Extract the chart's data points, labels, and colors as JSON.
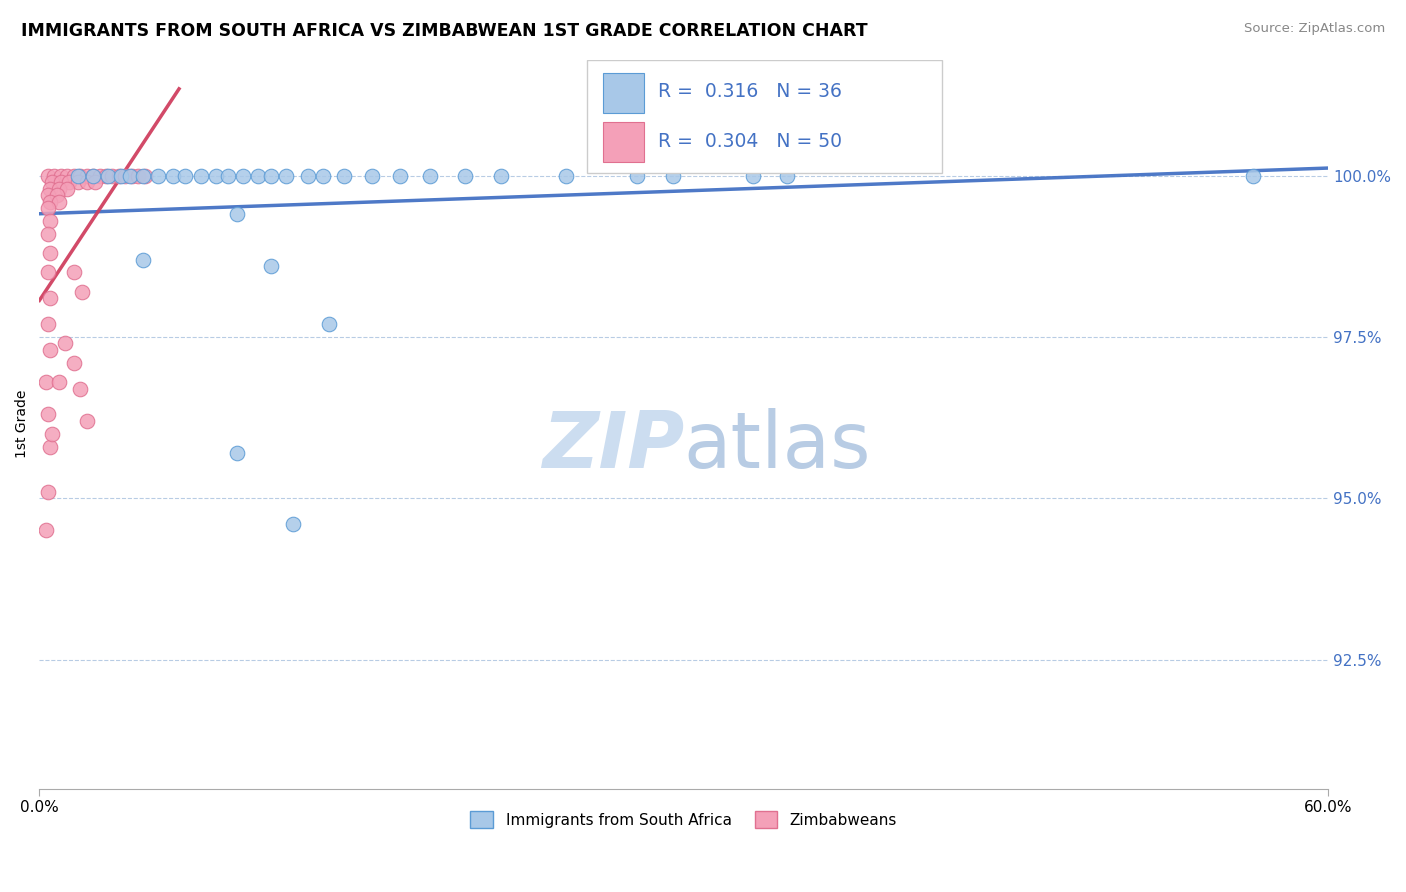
{
  "title": "IMMIGRANTS FROM SOUTH AFRICA VS ZIMBABWEAN 1ST GRADE CORRELATION CHART",
  "source": "Source: ZipAtlas.com",
  "ylabel": "1st Grade",
  "ytick_labels": [
    "100.0%",
    "97.5%",
    "95.0%",
    "92.5%"
  ],
  "ytick_values": [
    1.0,
    0.975,
    0.95,
    0.925
  ],
  "xtick_positions": [
    0.0,
    0.6
  ],
  "xtick_labels": [
    "0.0%",
    "60.0%"
  ],
  "xmin": 0.0,
  "xmax": 0.6,
  "ymin": 0.905,
  "ymax": 1.018,
  "legend1_label": "Immigrants from South Africa",
  "legend2_label": "Zimbabweans",
  "r1": 0.316,
  "n1": 36,
  "r2": 0.304,
  "n2": 50,
  "color_blue": "#a8c8e8",
  "color_pink": "#f4a0b8",
  "color_blue_edge": "#5b9bd5",
  "color_pink_edge": "#e07090",
  "trendline_blue": "#4472c4",
  "trendline_pink": "#d04060",
  "watermark_color": "#ccddf0",
  "scatter_blue": [
    [
      0.018,
      1.0
    ],
    [
      0.025,
      1.0
    ],
    [
      0.032,
      1.0
    ],
    [
      0.038,
      1.0
    ],
    [
      0.042,
      1.0
    ],
    [
      0.048,
      1.0
    ],
    [
      0.055,
      1.0
    ],
    [
      0.062,
      1.0
    ],
    [
      0.068,
      1.0
    ],
    [
      0.075,
      1.0
    ],
    [
      0.082,
      1.0
    ],
    [
      0.088,
      1.0
    ],
    [
      0.095,
      1.0
    ],
    [
      0.102,
      1.0
    ],
    [
      0.108,
      1.0
    ],
    [
      0.115,
      1.0
    ],
    [
      0.125,
      1.0
    ],
    [
      0.132,
      1.0
    ],
    [
      0.142,
      1.0
    ],
    [
      0.155,
      1.0
    ],
    [
      0.168,
      1.0
    ],
    [
      0.182,
      1.0
    ],
    [
      0.198,
      1.0
    ],
    [
      0.215,
      1.0
    ],
    [
      0.245,
      1.0
    ],
    [
      0.278,
      1.0
    ],
    [
      0.295,
      1.0
    ],
    [
      0.332,
      1.0
    ],
    [
      0.348,
      1.0
    ],
    [
      0.565,
      1.0
    ],
    [
      0.135,
      0.977
    ],
    [
      0.048,
      0.987
    ],
    [
      0.092,
      0.994
    ],
    [
      0.108,
      0.986
    ],
    [
      0.092,
      0.957
    ],
    [
      0.118,
      0.946
    ]
  ],
  "scatter_pink": [
    [
      0.004,
      1.0
    ],
    [
      0.007,
      1.0
    ],
    [
      0.01,
      1.0
    ],
    [
      0.013,
      1.0
    ],
    [
      0.016,
      1.0
    ],
    [
      0.019,
      1.0
    ],
    [
      0.022,
      1.0
    ],
    [
      0.025,
      1.0
    ],
    [
      0.028,
      1.0
    ],
    [
      0.031,
      1.0
    ],
    [
      0.034,
      1.0
    ],
    [
      0.037,
      1.0
    ],
    [
      0.04,
      1.0
    ],
    [
      0.043,
      1.0
    ],
    [
      0.046,
      1.0
    ],
    [
      0.049,
      1.0
    ],
    [
      0.006,
      0.999
    ],
    [
      0.01,
      0.999
    ],
    [
      0.014,
      0.999
    ],
    [
      0.018,
      0.999
    ],
    [
      0.022,
      0.999
    ],
    [
      0.026,
      0.999
    ],
    [
      0.005,
      0.998
    ],
    [
      0.009,
      0.998
    ],
    [
      0.013,
      0.998
    ],
    [
      0.004,
      0.997
    ],
    [
      0.008,
      0.997
    ],
    [
      0.005,
      0.996
    ],
    [
      0.009,
      0.996
    ],
    [
      0.004,
      0.995
    ],
    [
      0.005,
      0.993
    ],
    [
      0.004,
      0.991
    ],
    [
      0.005,
      0.988
    ],
    [
      0.004,
      0.985
    ],
    [
      0.005,
      0.981
    ],
    [
      0.004,
      0.977
    ],
    [
      0.005,
      0.973
    ],
    [
      0.003,
      0.968
    ],
    [
      0.004,
      0.963
    ],
    [
      0.005,
      0.958
    ],
    [
      0.004,
      0.951
    ],
    [
      0.003,
      0.945
    ],
    [
      0.006,
      0.96
    ],
    [
      0.009,
      0.968
    ],
    [
      0.012,
      0.974
    ],
    [
      0.016,
      0.971
    ],
    [
      0.019,
      0.967
    ],
    [
      0.022,
      0.962
    ],
    [
      0.016,
      0.985
    ],
    [
      0.02,
      0.982
    ]
  ]
}
